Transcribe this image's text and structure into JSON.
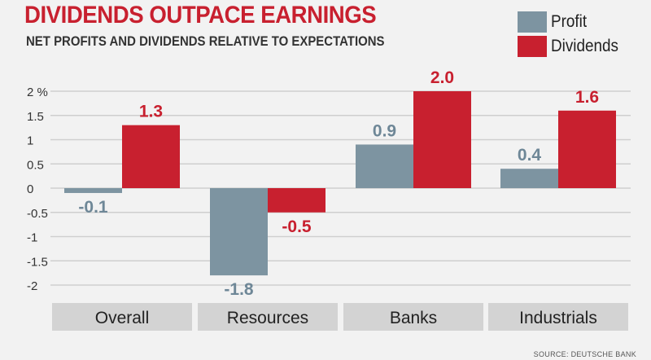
{
  "chart_data": {
    "type": "bar",
    "title": "DIVIDENDS OUTPACE EARNINGS",
    "subtitle": "NET PROFITS AND DIVIDENDS RELATIVE TO EXPECTATIONS",
    "categories": [
      "Overall",
      "Resources",
      "Banks",
      "Industrials"
    ],
    "series": [
      {
        "name": "Profit",
        "values": [
          -0.1,
          -1.8,
          0.9,
          0.4
        ],
        "labels": [
          "-0.1",
          "-1.8",
          "0.9",
          "0.4"
        ],
        "color": "#7d94a1",
        "label_color": "#6e8797"
      },
      {
        "name": "Dividends",
        "values": [
          1.3,
          -0.5,
          2.0,
          1.6
        ],
        "labels": [
          "1.3",
          "-0.5",
          "2.0",
          "1.6"
        ],
        "color": "#c8202f",
        "label_color": "#c8202f"
      }
    ],
    "yticks": [
      2,
      1.5,
      1,
      0.5,
      0,
      -0.5,
      -1,
      -1.5,
      -2
    ],
    "ytick_labels": [
      "2 %",
      "1.5",
      "1",
      "0.5",
      "0",
      "-0.5",
      "-1",
      "-1.5",
      "-2"
    ],
    "ylim": [
      -2.3,
      2.2
    ],
    "grid": true,
    "legend": "top-right",
    "xlabel": "",
    "ylabel": ""
  },
  "source": "SOURCE: DEUTSCHE BANK",
  "colors": {
    "background": "#f2f2f2",
    "grid": "#cfcfcf",
    "category_band": "#d3d3d3",
    "title": "#c8202f"
  }
}
